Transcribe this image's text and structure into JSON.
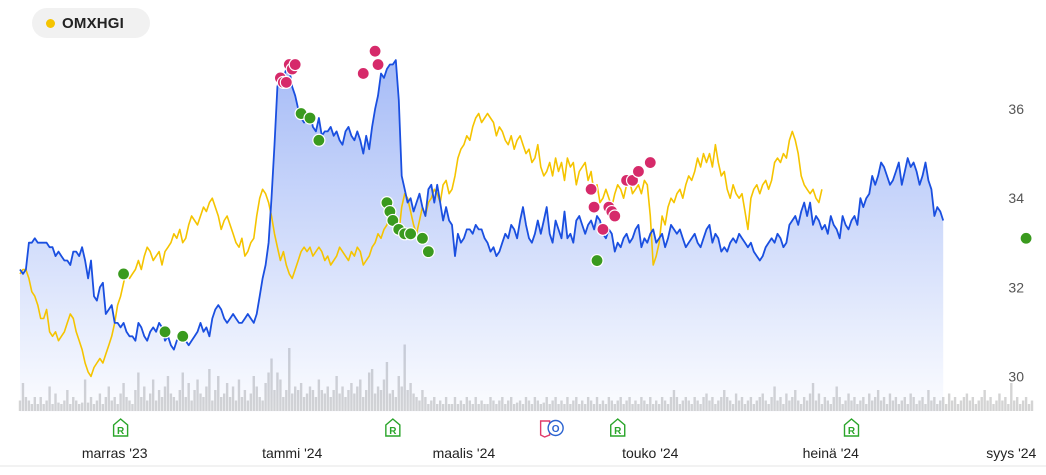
{
  "legend": {
    "label": "OMXHGI",
    "color": "#f5c400"
  },
  "chart_data": {
    "type": "line",
    "y_ticks": [
      30,
      32,
      34,
      36
    ],
    "y_tick_labels": [
      "30",
      "32",
      "34",
      "36"
    ],
    "ylim": [
      29.2,
      38.0
    ],
    "x_labels": [
      {
        "x": 32,
        "label": "marras '23"
      },
      {
        "x": 92,
        "label": "tammi '24"
      },
      {
        "x": 150,
        "label": "maalis '24"
      },
      {
        "x": 213,
        "label": "touko '24"
      },
      {
        "x": 274,
        "label": "heinä '24"
      },
      {
        "x": 335,
        "label": "syys '24"
      }
    ],
    "xlim": [
      0,
      342
    ],
    "series": [
      {
        "color": "#1a4fe0",
        "values": [
          32.4,
          32.3,
          32.4,
          33.0,
          33.0,
          33.1,
          33.0,
          33.0,
          33.0,
          33.0,
          32.9,
          32.9,
          32.7,
          32.8,
          32.7,
          32.6,
          32.6,
          32.5,
          32.8,
          32.8,
          32.7,
          32.9,
          32.6,
          32.2,
          32.6,
          31.8,
          31.7,
          32.0,
          32.1,
          31.4,
          31.5,
          31.6,
          31.2,
          31.2,
          31.1,
          31.2,
          31.0,
          30.9,
          30.9,
          30.8,
          31.2,
          31.1,
          30.9,
          30.8,
          31.0,
          31.1,
          31.0,
          31.2,
          31.1,
          30.8,
          30.9,
          30.7,
          30.6,
          30.8,
          30.9,
          30.8,
          30.8,
          30.7,
          30.8,
          30.9,
          31.0,
          31.2,
          31.0,
          31.1,
          30.9,
          31.3,
          31.5,
          31.6,
          31.5,
          31.3,
          31.2,
          31.3,
          31.4,
          31.3,
          31.2,
          31.2,
          31.3,
          31.4,
          31.3,
          31.2,
          31.4,
          31.8,
          32.2,
          32.5,
          33.0,
          34.0,
          35.2,
          36.5,
          36.8,
          36.7,
          36.9,
          36.9,
          36.5,
          36.3,
          36.0,
          35.8,
          35.7,
          35.8,
          35.9,
          35.6,
          35.5,
          35.8,
          35.4,
          35.5,
          35.5,
          35.6,
          35.4,
          35.5,
          35.3,
          35.2,
          35.5,
          35.6,
          35.4,
          35.3,
          35.5,
          35.3,
          35.0,
          35.4,
          35.1,
          35.6,
          36.0,
          36.3,
          36.8,
          36.7,
          36.9,
          37.0,
          37.0,
          37.1,
          36.2,
          34.5,
          34.2,
          33.9,
          34.0,
          33.7,
          33.9,
          34.1,
          33.8,
          33.6,
          34.2,
          34.3,
          33.9,
          34.3,
          33.9,
          33.5,
          33.8,
          33.5,
          33.4,
          32.7,
          33.2,
          33.0,
          33.1,
          33.3,
          33.3,
          33.2,
          33.4,
          33.3,
          33.3,
          33.1,
          33.0,
          32.8,
          32.9,
          32.7,
          32.8,
          33.0,
          33.2,
          33.1,
          33.4,
          33.3,
          33.1,
          33.5,
          33.8,
          33.4,
          33.1,
          33.0,
          33.2,
          33.5,
          33.2,
          33.5,
          33.8,
          33.2,
          33.0,
          33.5,
          33.3,
          33.1,
          33.7,
          33.1,
          33.2,
          33.0,
          33.5,
          33.6,
          33.4,
          33.2,
          33.4,
          33.5,
          33.3,
          33.6,
          33.5,
          33.2,
          33.1,
          33.3,
          33.2,
          32.8,
          33.0,
          32.9,
          33.1,
          33.2,
          33.0,
          33.1,
          33.3,
          33.4,
          32.9,
          33.1,
          33.0,
          33.2,
          33.3,
          33.0,
          33.1,
          33.2,
          32.9,
          33.1,
          33.4,
          33.3,
          33.2,
          33.3,
          33.1,
          32.9,
          33.0,
          33.1,
          33.2,
          33.0,
          32.9,
          33.1,
          33.3,
          33.4,
          33.0,
          33.2,
          33.1,
          32.8,
          32.9,
          32.8,
          33.0,
          33.1,
          33.0,
          33.2,
          33.1,
          33.0,
          32.9,
          33.0,
          32.8,
          32.7,
          32.6,
          32.7,
          32.9,
          33.0,
          33.1,
          33.0,
          33.2,
          33.1,
          32.9,
          33.0,
          33.4,
          33.5,
          33.6,
          33.4,
          33.7,
          33.9,
          33.6,
          33.9,
          33.4,
          33.6,
          33.5,
          33.3,
          33.4,
          33.2,
          33.6,
          33.4,
          33.3,
          33.1,
          33.6,
          33.4,
          33.3,
          33.5,
          33.6,
          33.4,
          34.0,
          33.8,
          34.0,
          34.1,
          34.5,
          34.3,
          34.5,
          34.8,
          34.7,
          34.5,
          34.3,
          34.4,
          34.6,
          34.8,
          34.3,
          34.6,
          34.9,
          34.7,
          34.8,
          34.6,
          34.3,
          34.5,
          34.8,
          34.4,
          34.2,
          33.6,
          33.8,
          33.7,
          33.5
        ]
      },
      {
        "color": "#f5c400",
        "values": [
          32.3,
          32.4,
          32.4,
          32.2,
          31.9,
          31.8,
          31.6,
          31.3,
          31.3,
          31.5,
          31.0,
          30.9,
          31.0,
          30.8,
          30.9,
          31.0,
          31.2,
          31.4,
          31.3,
          31.0,
          30.8,
          30.6,
          30.3,
          30.1,
          30.0,
          30.2,
          30.3,
          30.4,
          30.3,
          30.5,
          30.7,
          30.9,
          31.2,
          31.6,
          31.8,
          32.1,
          32.4,
          32.2,
          32.3,
          32.4,
          32.6,
          32.4,
          32.7,
          32.9,
          32.8,
          32.6,
          32.7,
          32.8,
          32.5,
          32.8,
          32.9,
          33.0,
          33.2,
          33.1,
          33.3,
          33.0,
          33.1,
          33.4,
          33.6,
          33.5,
          33.4,
          33.6,
          33.8,
          33.7,
          33.9,
          34.0,
          33.8,
          33.6,
          33.3,
          33.5,
          33.6,
          33.4,
          33.2,
          33.0,
          32.9,
          33.1,
          32.7,
          32.8,
          33.0,
          33.1,
          33.6,
          34.0,
          34.2,
          34.1,
          33.9,
          33.6,
          33.2,
          32.9,
          32.6,
          32.8,
          32.5,
          32.3,
          32.2,
          32.4,
          32.6,
          32.8,
          32.9,
          32.8,
          32.9,
          32.7,
          32.8,
          32.9,
          32.8,
          32.6,
          32.7,
          32.5,
          32.6,
          32.7,
          32.9,
          32.8,
          32.7,
          32.6,
          32.8,
          32.7,
          32.9,
          32.8,
          32.5,
          32.6,
          32.7,
          32.9,
          33.0,
          33.2,
          33.1,
          33.3,
          33.4,
          33.6,
          33.4,
          33.5,
          33.2,
          33.8,
          34.1,
          34.0,
          33.7,
          33.4,
          33.2,
          33.5,
          33.8,
          33.6,
          33.9,
          34.0,
          34.2,
          34.1,
          33.9,
          34.3,
          34.4,
          34.1,
          34.2,
          34.5,
          34.9,
          35.1,
          35.2,
          35.4,
          35.3,
          35.6,
          35.8,
          35.9,
          35.7,
          35.8,
          35.9,
          35.8,
          35.7,
          35.4,
          35.6,
          35.5,
          35.3,
          35.2,
          35.4,
          35.1,
          35.3,
          35.4,
          35.2,
          35.0,
          35.1,
          34.8,
          34.9,
          35.2,
          34.7,
          34.5,
          34.6,
          34.8,
          34.5,
          34.9,
          34.6,
          34.8,
          34.4,
          34.9,
          34.7,
          34.8,
          34.3,
          34.6,
          34.7,
          34.8,
          34.4,
          34.6,
          34.1,
          34.3,
          33.9,
          34.0,
          34.2,
          34.0,
          33.8,
          34.1,
          34.3,
          34.2,
          34.0,
          34.3,
          34.4,
          34.1,
          34.2,
          34.3,
          34.1,
          34.4,
          34.3,
          33.6,
          32.5,
          32.7,
          33.0,
          33.6,
          33.4,
          33.8,
          34.0,
          33.9,
          34.1,
          34.2,
          34.0,
          34.3,
          34.5,
          34.4,
          34.6,
          34.9,
          34.7,
          35.0,
          34.8,
          35.0,
          34.7,
          35.2,
          34.8,
          34.5,
          34.6,
          34.2,
          34.0,
          34.3,
          34.1,
          34.0,
          34.1,
          33.7,
          33.3,
          34.0,
          34.2,
          34.3,
          34.1,
          34.3,
          34.4,
          34.2,
          34.4,
          34.8,
          34.9,
          34.8,
          35.0,
          34.9,
          35.3,
          35.5,
          35.3,
          35.0,
          34.5,
          34.3,
          34.2,
          34.1,
          34.2,
          34.0,
          33.9,
          34.2
        ]
      }
    ],
    "buy_markers": [
      {
        "i": 35,
        "v": 32.3
      },
      {
        "i": 49,
        "v": 31.0
      },
      {
        "i": 55,
        "v": 30.9
      },
      {
        "i": 95,
        "v": 35.9
      },
      {
        "i": 98,
        "v": 35.8
      },
      {
        "i": 101,
        "v": 35.3
      },
      {
        "i": 124,
        "v": 33.9
      },
      {
        "i": 125,
        "v": 33.7
      },
      {
        "i": 126,
        "v": 33.5
      },
      {
        "i": 128,
        "v": 33.3
      },
      {
        "i": 130,
        "v": 33.2
      },
      {
        "i": 132,
        "v": 33.2
      },
      {
        "i": 136,
        "v": 33.1
      },
      {
        "i": 138,
        "v": 32.8
      },
      {
        "i": 195,
        "v": 32.6
      },
      {
        "i": 340,
        "v": 33.1
      }
    ],
    "sell_markers": [
      {
        "i": 88,
        "v": 36.7
      },
      {
        "i": 89,
        "v": 36.6
      },
      {
        "i": 90,
        "v": 36.6
      },
      {
        "i": 91,
        "v": 37.0
      },
      {
        "i": 92,
        "v": 36.9
      },
      {
        "i": 93,
        "v": 37.0
      },
      {
        "i": 116,
        "v": 36.8
      },
      {
        "i": 120,
        "v": 37.3
      },
      {
        "i": 121,
        "v": 37.0
      },
      {
        "i": 193,
        "v": 34.2
      },
      {
        "i": 194,
        "v": 33.8
      },
      {
        "i": 197,
        "v": 33.3
      },
      {
        "i": 199,
        "v": 33.8
      },
      {
        "i": 200,
        "v": 33.7
      },
      {
        "i": 201,
        "v": 33.6
      },
      {
        "i": 205,
        "v": 34.4
      },
      {
        "i": 207,
        "v": 34.4
      },
      {
        "i": 209,
        "v": 34.6
      },
      {
        "i": 213,
        "v": 34.8
      }
    ],
    "volume": [
      0.15,
      0.4,
      0.2,
      0.15,
      0.1,
      0.2,
      0.1,
      0.2,
      0.1,
      0.15,
      0.35,
      0.1,
      0.25,
      0.12,
      0.1,
      0.15,
      0.3,
      0.1,
      0.2,
      0.15,
      0.1,
      0.12,
      0.45,
      0.12,
      0.2,
      0.1,
      0.15,
      0.25,
      0.1,
      0.2,
      0.35,
      0.15,
      0.2,
      0.1,
      0.25,
      0.4,
      0.2,
      0.15,
      0.1,
      0.3,
      0.55,
      0.2,
      0.35,
      0.15,
      0.25,
      0.45,
      0.15,
      0.3,
      0.2,
      0.35,
      0.5,
      0.25,
      0.2,
      0.15,
      0.3,
      0.55,
      0.2,
      0.4,
      0.15,
      0.3,
      0.45,
      0.25,
      0.2,
      0.35,
      0.6,
      0.15,
      0.3,
      0.5,
      0.2,
      0.25,
      0.4,
      0.2,
      0.35,
      0.15,
      0.45,
      0.2,
      0.3,
      0.15,
      0.25,
      0.5,
      0.35,
      0.2,
      0.15,
      0.4,
      0.55,
      0.75,
      0.3,
      0.55,
      0.45,
      0.2,
      0.3,
      0.9,
      0.25,
      0.35,
      0.3,
      0.4,
      0.2,
      0.25,
      0.35,
      0.3,
      0.2,
      0.45,
      0.3,
      0.25,
      0.35,
      0.2,
      0.3,
      0.5,
      0.25,
      0.35,
      0.2,
      0.3,
      0.4,
      0.25,
      0.35,
      0.45,
      0.2,
      0.3,
      0.55,
      0.6,
      0.25,
      0.35,
      0.3,
      0.45,
      0.7,
      0.25,
      0.3,
      0.2,
      0.5,
      0.35,
      0.95,
      0.3,
      0.4,
      0.25,
      0.2,
      0.15,
      0.3,
      0.2,
      0.1,
      0.15,
      0.2,
      0.1,
      0.15,
      0.1,
      0.2,
      0.1,
      0.1,
      0.2,
      0.1,
      0.15,
      0.1,
      0.2,
      0.15,
      0.1,
      0.2,
      0.1,
      0.15,
      0.1,
      0.1,
      0.2,
      0.15,
      0.1,
      0.15,
      0.2,
      0.1,
      0.15,
      0.2,
      0.1,
      0.12,
      0.15,
      0.1,
      0.2,
      0.15,
      0.1,
      0.2,
      0.15,
      0.1,
      0.12,
      0.2,
      0.1,
      0.15,
      0.2,
      0.1,
      0.15,
      0.1,
      0.2,
      0.1,
      0.15,
      0.2,
      0.1,
      0.15,
      0.1,
      0.2,
      0.15,
      0.1,
      0.2,
      0.1,
      0.15,
      0.1,
      0.2,
      0.15,
      0.1,
      0.15,
      0.2,
      0.1,
      0.15,
      0.2,
      0.1,
      0.15,
      0.1,
      0.2,
      0.15,
      0.1,
      0.2,
      0.1,
      0.15,
      0.1,
      0.2,
      0.15,
      0.1,
      0.2,
      0.3,
      0.2,
      0.1,
      0.15,
      0.2,
      0.15,
      0.1,
      0.2,
      0.15,
      0.1,
      0.2,
      0.25,
      0.15,
      0.2,
      0.1,
      0.15,
      0.2,
      0.3,
      0.2,
      0.15,
      0.1,
      0.25,
      0.15,
      0.2,
      0.1,
      0.15,
      0.2,
      0.1,
      0.15,
      0.2,
      0.25,
      0.15,
      0.1,
      0.2,
      0.35,
      0.15,
      0.2,
      0.1,
      0.25,
      0.15,
      0.2,
      0.3,
      0.15,
      0.1,
      0.2,
      0.15,
      0.25,
      0.4,
      0.15,
      0.25,
      0.1,
      0.2,
      0.15,
      0.1,
      0.2,
      0.35,
      0.2,
      0.1,
      0.15,
      0.25,
      0.15,
      0.2,
      0.1,
      0.15,
      0.2,
      0.1,
      0.25,
      0.15,
      0.2,
      0.3,
      0.15,
      0.2,
      0.1,
      0.25,
      0.15,
      0.2,
      0.1,
      0.15,
      0.2,
      0.1,
      0.25,
      0.2,
      0.1,
      0.15,
      0.2,
      0.1,
      0.3,
      0.15,
      0.2,
      0.1,
      0.15,
      0.2,
      0.1,
      0.25,
      0.15,
      0.2,
      0.1,
      0.15,
      0.2,
      0.25,
      0.15,
      0.2,
      0.1,
      0.15,
      0.2,
      0.3,
      0.15,
      0.2,
      0.1,
      0.15,
      0.25,
      0.15,
      0.2,
      0.1,
      0.4,
      0.15,
      0.2,
      0.1,
      0.15,
      0.2,
      0.1,
      0.15
    ],
    "event_markers": [
      {
        "i": 34,
        "type": "R",
        "color": "#2aa52a"
      },
      {
        "i": 126,
        "type": "R",
        "color": "#2aa52a"
      },
      {
        "i": 180,
        "type": "O",
        "color": "#e03a6a"
      },
      {
        "i": 202,
        "type": "R",
        "color": "#2aa52a"
      },
      {
        "i": 281,
        "type": "R",
        "color": "#2aa52a"
      }
    ]
  }
}
